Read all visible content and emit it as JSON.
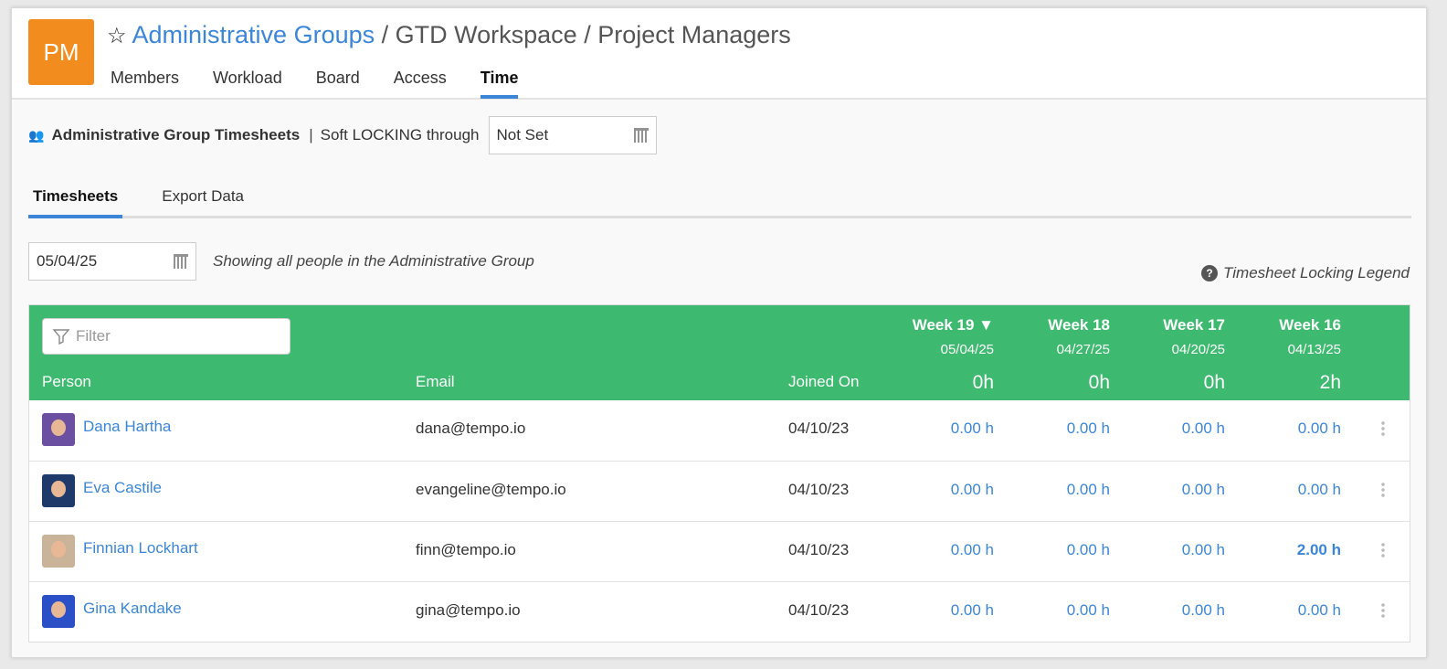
{
  "header": {
    "logo": "PM",
    "breadcrumb": [
      "Administrative Groups",
      "GTD Workspace",
      "Project Managers"
    ],
    "tabs": [
      {
        "label": "Members"
      },
      {
        "label": "Workload"
      },
      {
        "label": "Board"
      },
      {
        "label": "Access"
      },
      {
        "label": "Time",
        "active": true
      }
    ]
  },
  "locking": {
    "title": "Administrative Group Timesheets",
    "sep": "|",
    "label": "Soft LOCKING through",
    "value": "Not Set"
  },
  "subtabs": [
    {
      "label": "Timesheets",
      "active": true
    },
    {
      "label": "Export Data"
    }
  ],
  "date": {
    "value": "05/04/25",
    "note": "Showing all people in the Administrative Group"
  },
  "legend": "Timesheet Locking Legend",
  "table": {
    "filter_placeholder": "Filter",
    "columns": {
      "person": "Person",
      "email": "Email",
      "joined": "Joined On"
    },
    "weeks": [
      {
        "name": "Week 19 ▼",
        "date": "05/04/25",
        "total": "0h"
      },
      {
        "name": "Week 18",
        "date": "04/27/25",
        "total": "0h"
      },
      {
        "name": "Week 17",
        "date": "04/20/25",
        "total": "0h"
      },
      {
        "name": "Week 16",
        "date": "04/13/25",
        "total": "2h"
      }
    ],
    "rows": [
      {
        "name": "Dana Hartha",
        "email": "dana@tempo.io",
        "joined": "04/10/23",
        "hours": [
          "0.00 h",
          "0.00 h",
          "0.00 h",
          "0.00 h"
        ]
      },
      {
        "name": "Eva Castile",
        "email": "evangeline@tempo.io",
        "joined": "04/10/23",
        "hours": [
          "0.00 h",
          "0.00 h",
          "0.00 h",
          "0.00 h"
        ]
      },
      {
        "name": "Finnian Lockhart",
        "email": "finn@tempo.io",
        "joined": "04/10/23",
        "hours": [
          "0.00 h",
          "0.00 h",
          "0.00 h",
          "2.00 h"
        ]
      },
      {
        "name": "Gina Kandake",
        "email": "gina@tempo.io",
        "joined": "04/10/23",
        "hours": [
          "0.00 h",
          "0.00 h",
          "0.00 h",
          "0.00 h"
        ]
      }
    ]
  },
  "colors": {
    "accent": "#3b86d8",
    "header_green": "#3dba6f",
    "logo": "#f28c1e"
  }
}
